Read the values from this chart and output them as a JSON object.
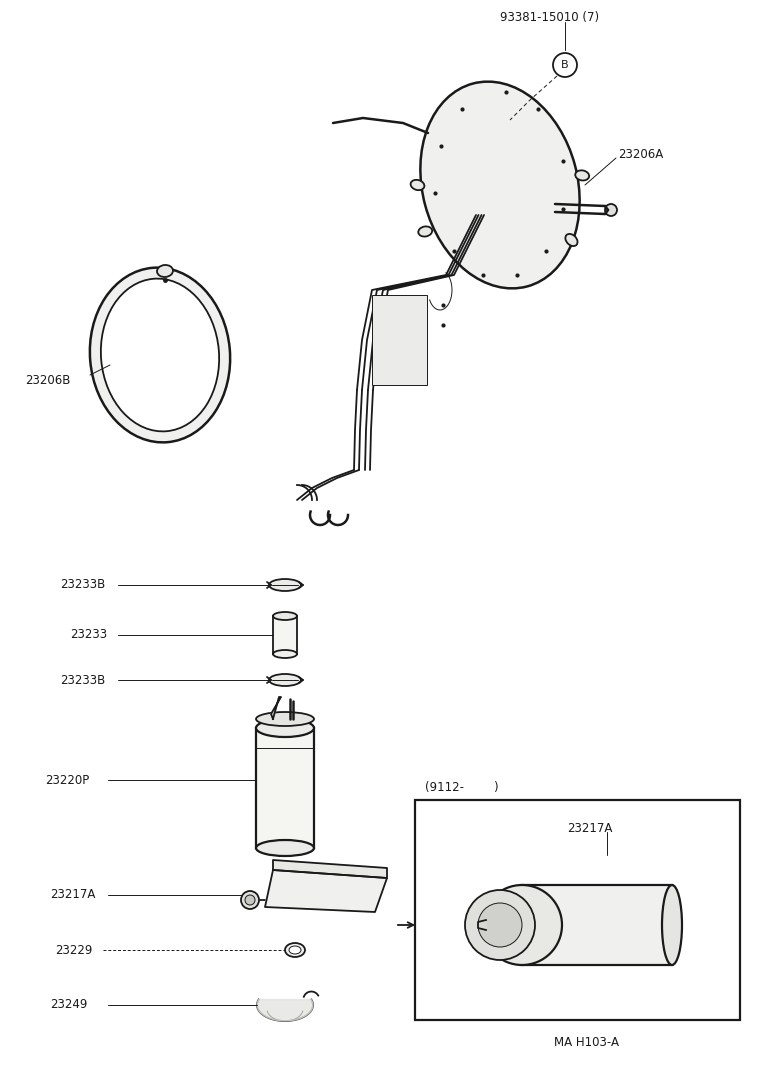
{
  "bg_color": "#ffffff",
  "line_color": "#1a1a1a",
  "labels": {
    "93381": "93381-15010 (7)",
    "23206A": "23206A",
    "23206B": "23206B",
    "23233B_top": "23233B",
    "23233": "23233",
    "23233B_bot": "23233B",
    "23220P": "23220P",
    "23217A_left": "23217A",
    "23217A_right": "23217A",
    "23229": "23229",
    "23249": "23249",
    "9112": "(9112-        )",
    "MA": "MA H103-A"
  },
  "font": "DejaVu Sans",
  "fontsize_label": 8.5
}
